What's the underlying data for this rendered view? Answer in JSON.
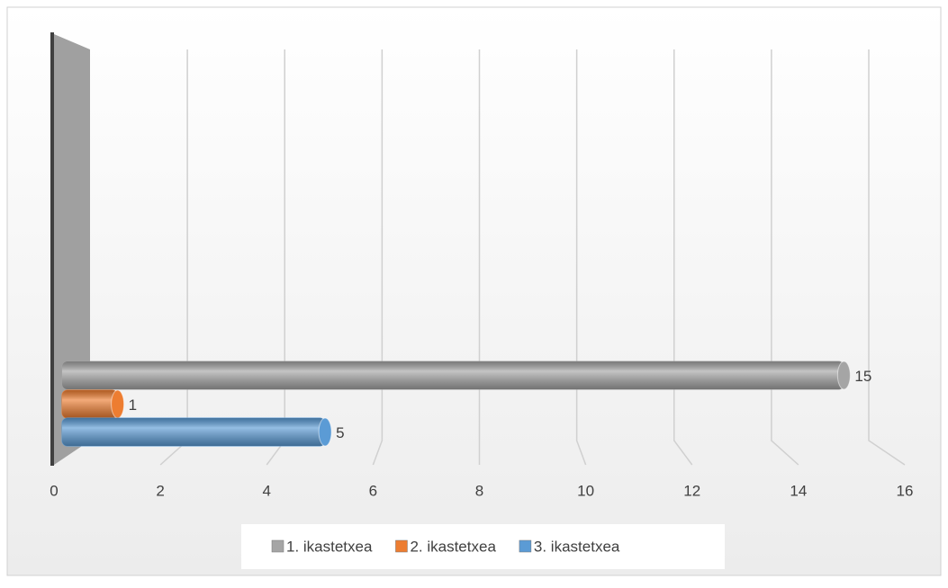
{
  "chart_data": {
    "type": "bar",
    "orientation": "horizontal",
    "categories": [
      null
    ],
    "series": [
      {
        "name": "1. ikastetxea",
        "color": "#a5a5a5",
        "values": [
          15
        ]
      },
      {
        "name": "2. ikastetxea",
        "color": "#ed7d31",
        "values": [
          1
        ]
      },
      {
        "name": "3. ikastetxea",
        "color": "#5b9bd5",
        "values": [
          5
        ]
      }
    ],
    "xlim": [
      0,
      16
    ],
    "xticks": [
      0,
      2,
      4,
      6,
      8,
      10,
      12,
      14,
      16
    ],
    "grid": true,
    "legend": "bottom"
  }
}
